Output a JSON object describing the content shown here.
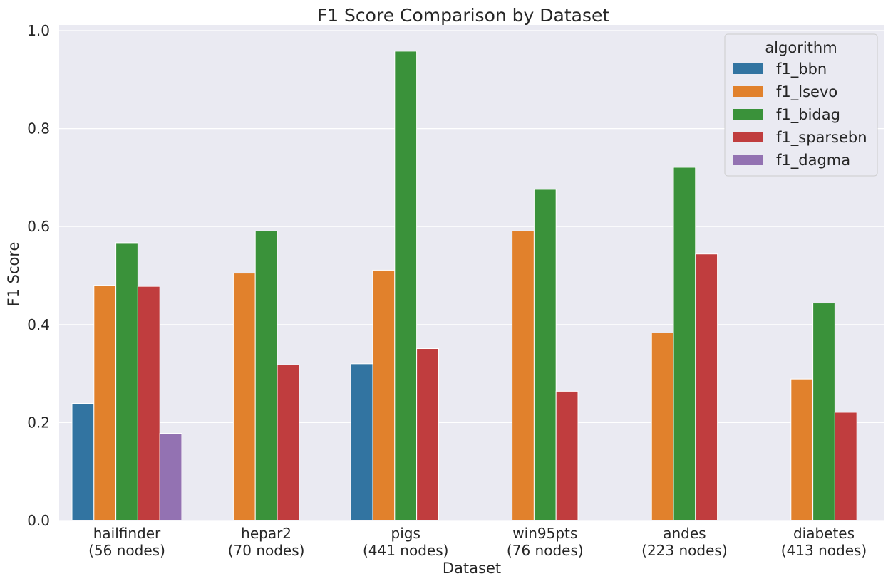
{
  "chart_data": {
    "type": "bar",
    "title": "F1 Score Comparison by Dataset",
    "xlabel": "Dataset",
    "ylabel": "F1 Score",
    "ylim": [
      0,
      1.0
    ],
    "yticks": [
      "0.0",
      "0.2",
      "0.4",
      "0.6",
      "0.8",
      "1.0"
    ],
    "categories": [
      [
        "hailfinder",
        "(56 nodes)"
      ],
      [
        "hepar2",
        "(70 nodes)"
      ],
      [
        "pigs",
        "(441 nodes)"
      ],
      [
        "win95pts",
        "(76 nodes)"
      ],
      [
        "andes",
        "(223 nodes)"
      ],
      [
        "diabetes",
        "(413 nodes)"
      ]
    ],
    "legend_title": "algorithm",
    "legend_position": "top-right",
    "grid": true,
    "background": "#EAEAF2",
    "series": [
      {
        "name": "f1_bbn",
        "color": "#3274A1",
        "values": [
          0.239,
          null,
          0.32,
          null,
          null,
          null
        ]
      },
      {
        "name": "f1_lsevo",
        "color": "#E1812C",
        "values": [
          0.48,
          0.505,
          0.511,
          0.591,
          0.383,
          0.289
        ]
      },
      {
        "name": "f1_bidag",
        "color": "#3A923A",
        "values": [
          0.567,
          0.591,
          0.958,
          0.676,
          0.721,
          0.444
        ]
      },
      {
        "name": "f1_sparsebn",
        "color": "#C03D3E",
        "values": [
          0.478,
          0.318,
          0.351,
          0.264,
          0.544,
          0.221
        ]
      },
      {
        "name": "f1_dagma",
        "color": "#9372B2",
        "values": [
          0.178,
          null,
          null,
          null,
          null,
          null
        ]
      }
    ]
  }
}
